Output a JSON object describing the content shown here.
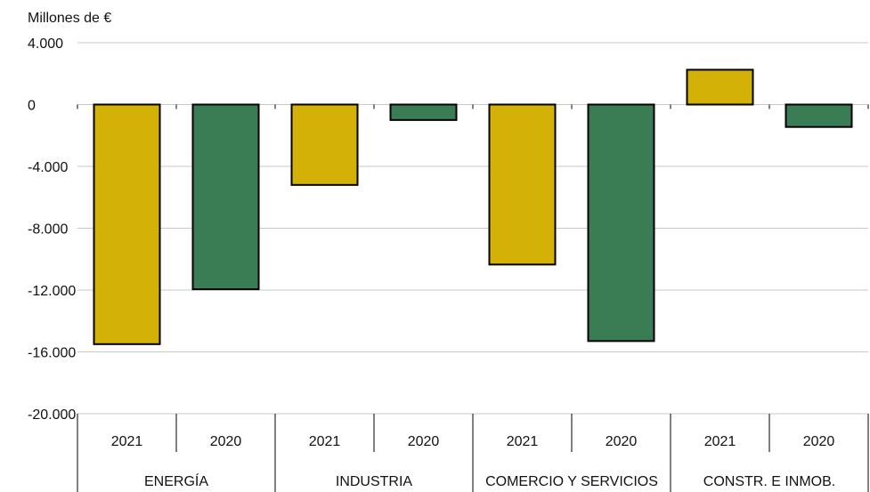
{
  "chart_data": {
    "type": "bar",
    "title": "",
    "unit_label": "Millones de €",
    "ylim": [
      -20000,
      4000
    ],
    "yticks": [
      4000,
      0,
      -4000,
      -8000,
      -12000,
      -16000,
      -20000
    ],
    "ytick_labels": [
      "4.000",
      "0",
      "-4.000",
      "-8.000",
      "-12.000",
      "-16.000",
      "-20.000"
    ],
    "grid": true,
    "groups": [
      {
        "name": "ENERGÍA",
        "bars": [
          {
            "year": "2021",
            "value": -15500
          },
          {
            "year": "2020",
            "value": -11950
          }
        ]
      },
      {
        "name": "INDUSTRIA",
        "bars": [
          {
            "year": "2021",
            "value": -5200
          },
          {
            "year": "2020",
            "value": -1000
          }
        ]
      },
      {
        "name": "COMERCIO Y SERVICIOS",
        "bars": [
          {
            "year": "2021",
            "value": -10350
          },
          {
            "year": "2020",
            "value": -15300
          }
        ]
      },
      {
        "name": "CONSTR. E INMOB.",
        "bars": [
          {
            "year": "2021",
            "value": 2250
          },
          {
            "year": "2020",
            "value": -1450
          }
        ]
      }
    ],
    "colors": {
      "2021": "#d4b106",
      "2020": "#3a7d55",
      "outline": "#000000",
      "grid": "#c8c8c8"
    }
  }
}
